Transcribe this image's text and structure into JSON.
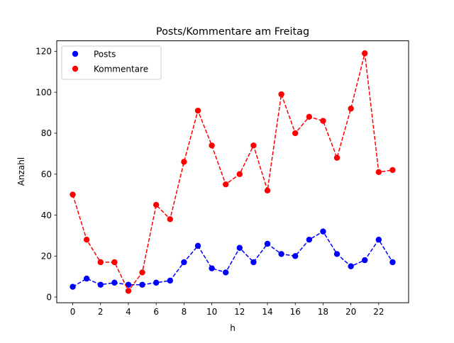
{
  "chart_data": {
    "type": "line",
    "title": "Posts/Kommentare am Freitag",
    "xlabel": "h",
    "ylabel": "Anzahl",
    "x": [
      0,
      1,
      2,
      3,
      4,
      5,
      6,
      7,
      8,
      9,
      10,
      11,
      12,
      13,
      14,
      15,
      16,
      17,
      18,
      19,
      20,
      21,
      22,
      23
    ],
    "xticks": [
      0,
      2,
      4,
      6,
      8,
      10,
      12,
      14,
      16,
      18,
      20,
      22
    ],
    "yticks": [
      0,
      20,
      40,
      60,
      80,
      100,
      120
    ],
    "xlim": [
      -1.15,
      24.15
    ],
    "ylim": [
      -2.8,
      125.1
    ],
    "grid": false,
    "legend_position": "upper left",
    "series": [
      {
        "name": "Posts",
        "color": "#0000ff",
        "marker": "o",
        "linestyle": "dashed",
        "values": [
          5,
          9,
          6,
          7,
          6,
          6,
          7,
          8,
          17,
          25,
          14,
          12,
          24,
          17,
          26,
          21,
          20,
          28,
          32,
          21,
          15,
          18,
          28,
          17
        ]
      },
      {
        "name": "Kommentare",
        "color": "#ff0000",
        "marker": "o",
        "linestyle": "dashed",
        "values": [
          50,
          28,
          17,
          17,
          3,
          12,
          45,
          38,
          66,
          91,
          74,
          55,
          60,
          74,
          52,
          99,
          80,
          88,
          86,
          68,
          92,
          119,
          61,
          62
        ]
      }
    ]
  }
}
